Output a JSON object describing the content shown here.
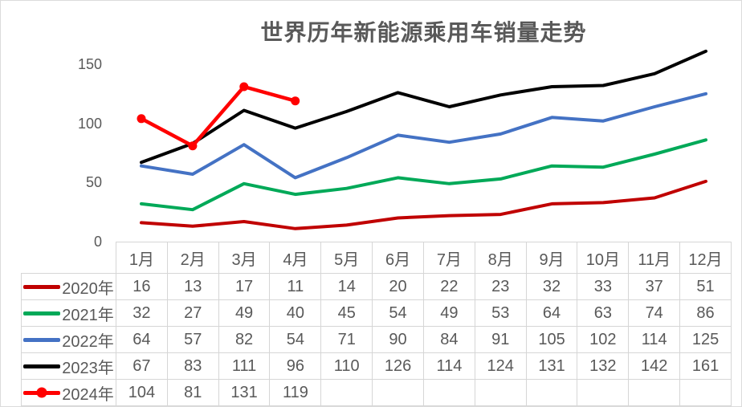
{
  "frame": {
    "background": "#FFFFFF",
    "border_color": "#DCDCDC"
  },
  "chart_data": {
    "type": "line",
    "title": "世界历年新能源乘用车销量走势",
    "title_color": "#595959",
    "categories": [
      "1月",
      "2月",
      "3月",
      "4月",
      "5月",
      "6月",
      "7月",
      "8月",
      "9月",
      "10月",
      "11月",
      "12月"
    ],
    "series": [
      {
        "name": "2020年",
        "color": "#C00000",
        "marker": false,
        "values": [
          16,
          13,
          17,
          11,
          14,
          20,
          22,
          23,
          32,
          33,
          37,
          51
        ]
      },
      {
        "name": "2021年",
        "color": "#00A958",
        "marker": false,
        "values": [
          32,
          27,
          49,
          40,
          45,
          54,
          49,
          53,
          64,
          63,
          74,
          86
        ]
      },
      {
        "name": "2022年",
        "color": "#4472C4",
        "marker": false,
        "values": [
          64,
          57,
          82,
          54,
          71,
          90,
          84,
          91,
          105,
          102,
          114,
          125
        ]
      },
      {
        "name": "2023年",
        "color": "#000000",
        "marker": false,
        "values": [
          67,
          83,
          111,
          96,
          110,
          126,
          114,
          124,
          131,
          132,
          142,
          161
        ]
      },
      {
        "name": "2024年",
        "color": "#FF0000",
        "marker": true,
        "values": [
          104,
          81,
          131,
          119,
          null,
          null,
          null,
          null,
          null,
          null,
          null,
          null
        ]
      }
    ],
    "y_ticks": [
      0,
      50,
      100,
      150
    ],
    "ylim": [
      0,
      165
    ],
    "grid": false,
    "legend_position": "table-left",
    "axis_label_color": "#595959"
  },
  "table": {
    "border_color": "#D6D6D6",
    "text_color": "#595959"
  }
}
